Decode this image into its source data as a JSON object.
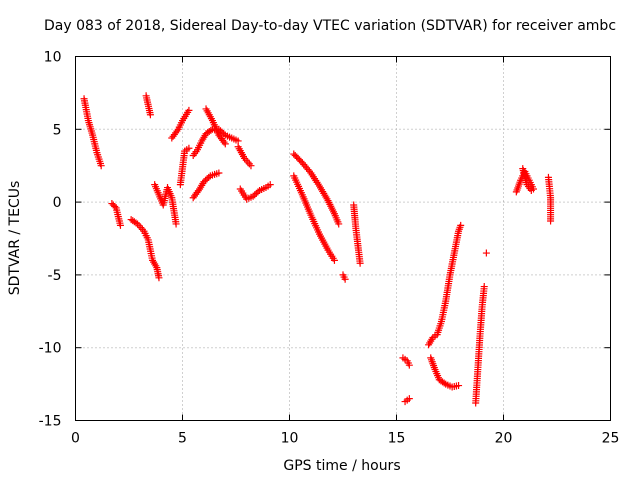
{
  "chart_data": {
    "type": "scatter",
    "title": "Day 083 of 2018, Sidereal Day-to-day VTEC variation (SDTVAR) for receiver ambc",
    "xlabel": "GPS time / hours",
    "ylabel": "SDTVAR / TECUs",
    "xlim": [
      0,
      25
    ],
    "ylim": [
      -15,
      10
    ],
    "xticks": [
      0,
      5,
      10,
      15,
      20,
      25
    ],
    "yticks": [
      -15,
      -10,
      -5,
      0,
      5,
      10
    ],
    "grid": true,
    "marker": "+",
    "color": "#ff0000",
    "segments": [
      [
        [
          0.4,
          7.1
        ],
        [
          0.6,
          5.6
        ],
        [
          0.8,
          4.6
        ],
        [
          1.0,
          3.4
        ],
        [
          1.2,
          2.5
        ]
      ],
      [
        [
          1.7,
          -0.1
        ],
        [
          1.9,
          -0.4
        ],
        [
          2.1,
          -1.6
        ]
      ],
      [
        [
          2.6,
          -1.2
        ],
        [
          2.9,
          -1.5
        ],
        [
          3.2,
          -2.0
        ],
        [
          3.4,
          -2.6
        ],
        [
          3.6,
          -4.0
        ],
        [
          3.8,
          -4.5
        ],
        [
          3.9,
          -5.2
        ]
      ],
      [
        [
          3.3,
          7.3
        ],
        [
          3.5,
          6.0
        ]
      ],
      [
        [
          3.7,
          1.2
        ],
        [
          3.9,
          0.5
        ],
        [
          4.1,
          -0.2
        ],
        [
          4.3,
          1.0
        ],
        [
          4.5,
          0.3
        ],
        [
          4.7,
          -1.5
        ]
      ],
      [
        [
          4.5,
          4.4
        ],
        [
          4.8,
          5.0
        ],
        [
          5.0,
          5.6
        ],
        [
          5.3,
          6.3
        ]
      ],
      [
        [
          4.9,
          1.2
        ],
        [
          5.1,
          3.5
        ],
        [
          5.3,
          3.7
        ]
      ],
      [
        [
          5.5,
          3.2
        ],
        [
          5.7,
          3.6
        ],
        [
          5.9,
          4.2
        ],
        [
          6.1,
          4.7
        ],
        [
          6.4,
          5.0
        ],
        [
          6.7,
          5.0
        ],
        [
          7.0,
          4.6
        ],
        [
          7.3,
          4.4
        ],
        [
          7.6,
          4.2
        ]
      ],
      [
        [
          5.5,
          0.3
        ],
        [
          5.8,
          0.9
        ],
        [
          6.0,
          1.4
        ],
        [
          6.3,
          1.8
        ],
        [
          6.7,
          2.0
        ]
      ],
      [
        [
          6.1,
          6.4
        ],
        [
          6.4,
          5.6
        ],
        [
          6.7,
          4.6
        ],
        [
          7.0,
          4.0
        ]
      ],
      [
        [
          7.6,
          3.8
        ],
        [
          7.9,
          3.0
        ],
        [
          8.2,
          2.5
        ]
      ],
      [
        [
          7.7,
          0.9
        ],
        [
          8.0,
          0.2
        ],
        [
          8.3,
          0.4
        ],
        [
          8.6,
          0.8
        ],
        [
          8.9,
          1.0
        ],
        [
          9.1,
          1.2
        ]
      ],
      [
        [
          10.2,
          3.3
        ],
        [
          10.6,
          2.7
        ],
        [
          11.0,
          2.0
        ],
        [
          11.4,
          1.1
        ],
        [
          11.8,
          0.1
        ],
        [
          12.1,
          -0.8
        ],
        [
          12.3,
          -1.5
        ]
      ],
      [
        [
          10.2,
          1.8
        ],
        [
          10.6,
          0.5
        ],
        [
          11.0,
          -0.9
        ],
        [
          11.4,
          -2.2
        ],
        [
          11.8,
          -3.3
        ],
        [
          12.1,
          -4.0
        ]
      ],
      [
        [
          12.5,
          -5.0
        ],
        [
          12.6,
          -5.3
        ]
      ],
      [
        [
          13.0,
          -0.2
        ],
        [
          13.1,
          -1.8
        ],
        [
          13.2,
          -3.0
        ],
        [
          13.3,
          -4.2
        ]
      ],
      [
        [
          15.3,
          -10.7
        ],
        [
          15.5,
          -10.9
        ],
        [
          15.6,
          -11.2
        ]
      ],
      [
        [
          15.4,
          -13.7
        ],
        [
          15.6,
          -13.5
        ]
      ],
      [
        [
          16.5,
          -9.8
        ],
        [
          16.7,
          -9.3
        ],
        [
          16.9,
          -9.1
        ],
        [
          17.1,
          -8.2
        ],
        [
          17.3,
          -6.8
        ],
        [
          17.5,
          -5.0
        ],
        [
          17.7,
          -3.5
        ],
        [
          17.9,
          -2.0
        ],
        [
          18.0,
          -1.6
        ]
      ],
      [
        [
          16.6,
          -10.7
        ],
        [
          16.8,
          -11.5
        ],
        [
          17.0,
          -12.2
        ],
        [
          17.3,
          -12.5
        ],
        [
          17.6,
          -12.7
        ],
        [
          17.9,
          -12.6
        ]
      ],
      [
        [
          18.7,
          -13.8
        ],
        [
          18.8,
          -11.5
        ],
        [
          18.9,
          -9.2
        ],
        [
          19.0,
          -7.2
        ],
        [
          19.1,
          -5.8
        ]
      ],
      [
        [
          19.2,
          -3.5
        ]
      ],
      [
        [
          20.6,
          0.7
        ],
        [
          20.8,
          1.5
        ],
        [
          21.0,
          2.1
        ],
        [
          21.2,
          1.5
        ],
        [
          21.4,
          0.9
        ]
      ],
      [
        [
          20.9,
          2.3
        ],
        [
          21.1,
          1.2
        ],
        [
          21.3,
          0.8
        ]
      ],
      [
        [
          22.1,
          1.7
        ],
        [
          22.2,
          0.3
        ],
        [
          22.2,
          -1.3
        ]
      ]
    ]
  }
}
